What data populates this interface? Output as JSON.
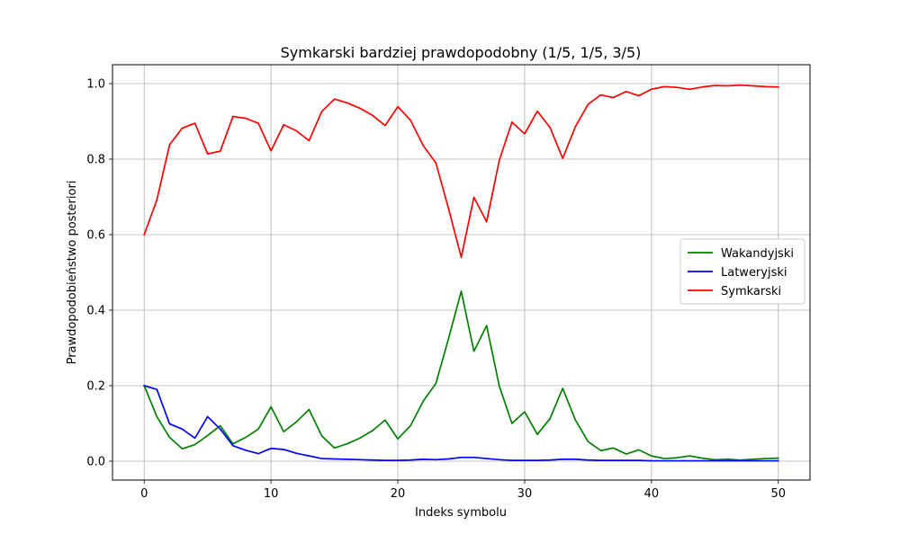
{
  "chart_data": {
    "type": "line",
    "title": "Symkarski bardziej prawdopodobny (1/5, 1/5, 3/5)",
    "xlabel": "Indeks symbolu",
    "ylabel": "Prawdopodobieństwo posteriori",
    "xlim": [
      -2.5,
      52.5
    ],
    "ylim": [
      -0.05,
      1.05
    ],
    "xticks": [
      0,
      10,
      20,
      30,
      40,
      50
    ],
    "yticks": [
      0.0,
      0.2,
      0.4,
      0.6,
      0.8,
      1.0
    ],
    "xtick_labels": [
      "0",
      "10",
      "20",
      "30",
      "40",
      "50"
    ],
    "ytick_labels": [
      "0.0",
      "0.2",
      "0.4",
      "0.6",
      "0.8",
      "1.0"
    ],
    "grid": true,
    "legend_position": "center-right",
    "x": [
      0,
      1,
      2,
      3,
      4,
      5,
      6,
      7,
      8,
      9,
      10,
      11,
      12,
      13,
      14,
      15,
      16,
      17,
      18,
      19,
      20,
      21,
      22,
      23,
      24,
      25,
      26,
      27,
      28,
      29,
      30,
      31,
      32,
      33,
      34,
      35,
      36,
      37,
      38,
      39,
      40,
      41,
      42,
      43,
      44,
      45,
      46,
      47,
      48,
      49,
      50
    ],
    "series": [
      {
        "name": "Wakandyjski",
        "color": "#008000",
        "values": [
          0.2,
          0.118,
          0.063,
          0.033,
          0.044,
          0.068,
          0.094,
          0.046,
          0.063,
          0.085,
          0.144,
          0.078,
          0.104,
          0.137,
          0.067,
          0.035,
          0.046,
          0.061,
          0.081,
          0.109,
          0.059,
          0.094,
          0.159,
          0.206,
          0.325,
          0.45,
          0.291,
          0.359,
          0.199,
          0.1,
          0.131,
          0.071,
          0.113,
          0.193,
          0.109,
          0.052,
          0.028,
          0.035,
          0.019,
          0.03,
          0.014,
          0.007,
          0.009,
          0.014,
          0.008,
          0.004,
          0.005,
          0.003,
          0.005,
          0.007,
          0.008
        ]
      },
      {
        "name": "Latweryjski",
        "color": "#0000ff",
        "values": [
          0.2,
          0.19,
          0.099,
          0.085,
          0.061,
          0.118,
          0.085,
          0.041,
          0.029,
          0.02,
          0.034,
          0.031,
          0.021,
          0.014,
          0.007,
          0.006,
          0.005,
          0.004,
          0.003,
          0.002,
          0.002,
          0.003,
          0.005,
          0.004,
          0.006,
          0.01,
          0.01,
          0.007,
          0.004,
          0.002,
          0.002,
          0.002,
          0.003,
          0.005,
          0.005,
          0.003,
          0.002,
          0.002,
          0.002,
          0.002,
          0.001,
          0.001,
          0.001,
          0.001,
          0.001,
          0.001,
          0.001,
          0.001,
          0.001,
          0.001,
          0.001
        ]
      },
      {
        "name": "Symkarski",
        "color": "#ff0000",
        "values": [
          0.6,
          0.692,
          0.838,
          0.882,
          0.895,
          0.814,
          0.821,
          0.913,
          0.908,
          0.895,
          0.822,
          0.891,
          0.875,
          0.849,
          0.926,
          0.959,
          0.949,
          0.935,
          0.916,
          0.889,
          0.939,
          0.903,
          0.836,
          0.79,
          0.669,
          0.54,
          0.699,
          0.634,
          0.797,
          0.898,
          0.867,
          0.927,
          0.884,
          0.802,
          0.886,
          0.945,
          0.97,
          0.963,
          0.979,
          0.968,
          0.985,
          0.992,
          0.99,
          0.985,
          0.991,
          0.995,
          0.994,
          0.996,
          0.994,
          0.992,
          0.991
        ]
      }
    ]
  }
}
